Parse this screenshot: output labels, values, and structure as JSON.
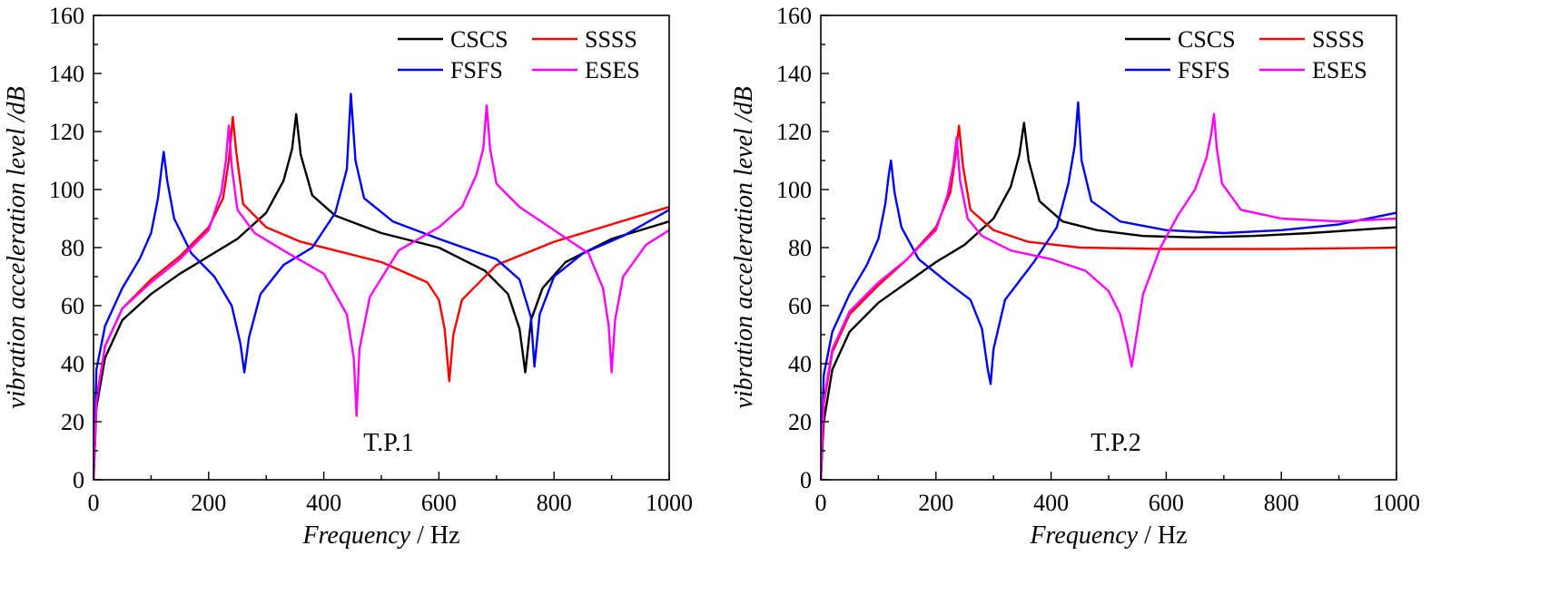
{
  "chart_data": [
    {
      "type": "line",
      "annotation": "T.P.1",
      "xlabel_italic": "Frequency",
      "xlabel_unit": " / Hz",
      "ylabel": "vibration acceleration level /dB",
      "xlim": [
        0,
        1000
      ],
      "ylim": [
        0,
        160
      ],
      "xticks": [
        0,
        200,
        400,
        600,
        800,
        1000
      ],
      "yticks": [
        0,
        20,
        40,
        60,
        80,
        100,
        120,
        140,
        160
      ],
      "legend_position": "top-right",
      "series": [
        {
          "name": "CSCS",
          "color": "#000000",
          "x": [
            0,
            5,
            20,
            50,
            100,
            150,
            200,
            250,
            300,
            330,
            345,
            352,
            360,
            380,
            420,
            500,
            600,
            680,
            720,
            740,
            750,
            760,
            780,
            820,
            900,
            1000
          ],
          "y": [
            0,
            25,
            42,
            55,
            64,
            71,
            77,
            83,
            92,
            103,
            114,
            126,
            112,
            98,
            91,
            85,
            80,
            72,
            64,
            52,
            37,
            55,
            66,
            75,
            83,
            89
          ]
        },
        {
          "name": "SSSS",
          "color": "#ff0000",
          "x": [
            0,
            5,
            20,
            50,
            100,
            150,
            200,
            225,
            235,
            242,
            248,
            260,
            300,
            360,
            420,
            500,
            580,
            600,
            610,
            618,
            625,
            640,
            700,
            800,
            900,
            1000
          ],
          "y": [
            0,
            28,
            46,
            59,
            69,
            77,
            87,
            97,
            110,
            125,
            113,
            95,
            87,
            82,
            79,
            75,
            68,
            62,
            52,
            34,
            50,
            62,
            74,
            82,
            88,
            94
          ]
        },
        {
          "name": "FSFS",
          "color": "#0000ff",
          "x": [
            0,
            5,
            20,
            50,
            80,
            100,
            112,
            118,
            122,
            128,
            140,
            170,
            210,
            240,
            255,
            262,
            270,
            290,
            330,
            380,
            420,
            440,
            447,
            455,
            470,
            520,
            600,
            700,
            740,
            760,
            766,
            775,
            800,
            850,
            920,
            1000
          ],
          "y": [
            0,
            38,
            53,
            66,
            76,
            85,
            97,
            107,
            113,
            103,
            90,
            78,
            70,
            60,
            47,
            37,
            49,
            64,
            74,
            80,
            92,
            107,
            133,
            110,
            97,
            89,
            83,
            76,
            69,
            56,
            39,
            57,
            70,
            78,
            84,
            93
          ]
        },
        {
          "name": "ESES",
          "color": "#ff00ff",
          "x": [
            0,
            5,
            20,
            50,
            100,
            150,
            200,
            222,
            230,
            235,
            240,
            250,
            280,
            330,
            400,
            440,
            452,
            457,
            462,
            480,
            530,
            600,
            640,
            665,
            677,
            683,
            689,
            700,
            740,
            800,
            860,
            885,
            895,
            900,
            906,
            920,
            960,
            1000
          ],
          "y": [
            0,
            27,
            46,
            59,
            68,
            76,
            86,
            99,
            110,
            122,
            108,
            93,
            85,
            79,
            71,
            57,
            42,
            22,
            45,
            63,
            79,
            87,
            94,
            105,
            114,
            129,
            114,
            102,
            94,
            86,
            78,
            66,
            53,
            37,
            55,
            70,
            81,
            86
          ]
        }
      ]
    },
    {
      "type": "line",
      "annotation": "T.P.2",
      "xlabel_italic": "Frequency",
      "xlabel_unit": " / Hz",
      "ylabel": "vibration acceleration level /dB",
      "xlim": [
        0,
        1000
      ],
      "ylim": [
        0,
        160
      ],
      "xticks": [
        0,
        200,
        400,
        600,
        800,
        1000
      ],
      "yticks": [
        0,
        20,
        40,
        60,
        80,
        100,
        120,
        140,
        160
      ],
      "legend_position": "top-right",
      "series": [
        {
          "name": "CSCS",
          "color": "#000000",
          "x": [
            0,
            5,
            20,
            50,
            100,
            150,
            200,
            250,
            300,
            330,
            345,
            353,
            361,
            380,
            420,
            480,
            560,
            650,
            750,
            850,
            1000
          ],
          "y": [
            0,
            20,
            38,
            51,
            61,
            68,
            75,
            81,
            90,
            101,
            112,
            123,
            110,
            96,
            89,
            86,
            84,
            83.5,
            84,
            85,
            87
          ]
        },
        {
          "name": "SSSS",
          "color": "#ff0000",
          "x": [
            0,
            5,
            20,
            50,
            100,
            150,
            200,
            225,
            233,
            240,
            247,
            260,
            300,
            360,
            450,
            600,
            800,
            1000
          ],
          "y": [
            0,
            26,
            44,
            57,
            67,
            76,
            87,
            99,
            110,
            122,
            108,
            93,
            86,
            82,
            80,
            79.5,
            79.5,
            80
          ]
        },
        {
          "name": "FSFS",
          "color": "#0000ff",
          "x": [
            0,
            5,
            20,
            50,
            80,
            100,
            112,
            118,
            122,
            128,
            140,
            170,
            220,
            260,
            280,
            290,
            295,
            300,
            320,
            370,
            410,
            430,
            441,
            447,
            453,
            470,
            520,
            600,
            700,
            800,
            900,
            1000
          ],
          "y": [
            0,
            36,
            51,
            64,
            74,
            83,
            95,
            105,
            110,
            99,
            87,
            76,
            68,
            62,
            52,
            38,
            33,
            45,
            62,
            75,
            87,
            102,
            115,
            130,
            110,
            96,
            89,
            86,
            85,
            86,
            88,
            92
          ]
        },
        {
          "name": "ESES",
          "color": "#ff00ff",
          "x": [
            0,
            5,
            20,
            50,
            100,
            150,
            200,
            220,
            230,
            236,
            242,
            255,
            280,
            330,
            400,
            460,
            500,
            520,
            532,
            540,
            548,
            560,
            590,
            620,
            650,
            670,
            678,
            683,
            688,
            697,
            730,
            800,
            900,
            1000
          ],
          "y": [
            0,
            27,
            45,
            58,
            68,
            76,
            86,
            98,
            108,
            118,
            103,
            90,
            84,
            79,
            76,
            72,
            65,
            57,
            47,
            39,
            49,
            64,
            80,
            91,
            100,
            111,
            119,
            126,
            114,
            102,
            93,
            90,
            89,
            90
          ]
        }
      ]
    }
  ]
}
